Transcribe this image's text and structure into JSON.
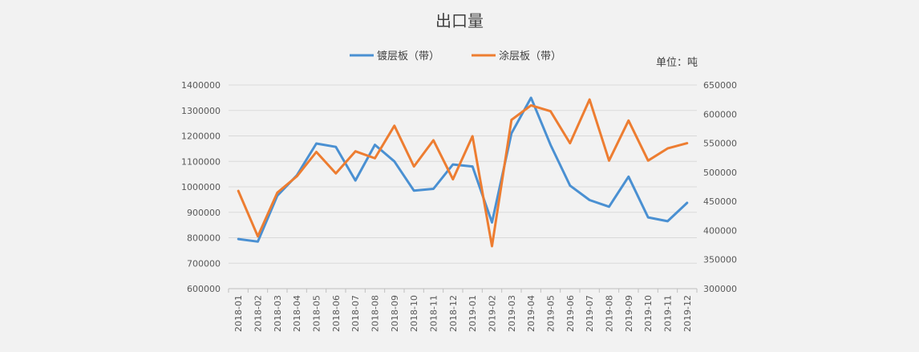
{
  "chart_data": {
    "type": "line",
    "title": "出口量",
    "unit_label": "单位：吨",
    "legend_position": "top",
    "grid": true,
    "categories": [
      "2018-01",
      "2018-02",
      "2018-03",
      "2018-04",
      "2018-05",
      "2018-06",
      "2018-07",
      "2018-08",
      "2018-09",
      "2018-10",
      "2018-11",
      "2018-12",
      "2019-01",
      "2019-02",
      "2019-03",
      "2019-04",
      "2019-05",
      "2019-06",
      "2019-07",
      "2019-08",
      "2019-09",
      "2019-10",
      "2019-11",
      "2019-12"
    ],
    "y_left": {
      "ylim": [
        600000,
        1400000
      ],
      "ticks": [
        600000,
        700000,
        800000,
        900000,
        1000000,
        1100000,
        1200000,
        1300000,
        1400000
      ]
    },
    "y_right": {
      "ylim": [
        300000,
        650000
      ],
      "ticks": [
        300000,
        350000,
        400000,
        450000,
        500000,
        550000,
        600000,
        650000
      ]
    },
    "series": [
      {
        "name": "镀层板（带）",
        "axis": "left",
        "color": "#4a90d2",
        "values": [
          795000,
          785000,
          965000,
          1045000,
          1170000,
          1157000,
          1025000,
          1165000,
          1100000,
          985000,
          992000,
          1088000,
          1080000,
          860000,
          1210000,
          1350000,
          1165000,
          1005000,
          948000,
          922000,
          1040000,
          880000,
          865000,
          937000
        ]
      },
      {
        "name": "涂层板（带）",
        "axis": "right",
        "color": "#ed7d31",
        "values": [
          468000,
          390000,
          465000,
          493000,
          535000,
          498000,
          536000,
          524000,
          580000,
          510000,
          555000,
          488000,
          562000,
          373000,
          590000,
          615000,
          605000,
          550000,
          625000,
          520000,
          589000,
          520000,
          541000,
          550000
        ]
      }
    ]
  }
}
